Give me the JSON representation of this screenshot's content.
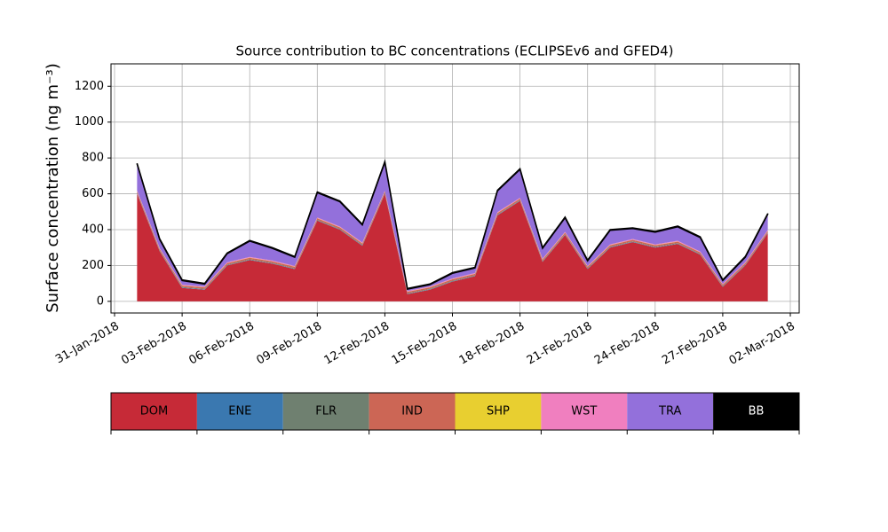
{
  "chart_data": {
    "type": "stacked_area",
    "title": "Source contribution to BC concentrations (ECLIPSEv6 and GFED4)",
    "ylabel": "Surface concentration (ng m⁻³)",
    "x": [
      "2018-02-01",
      "2018-02-02",
      "2018-02-03",
      "2018-02-04",
      "2018-02-05",
      "2018-02-06",
      "2018-02-07",
      "2018-02-08",
      "2018-02-09",
      "2018-02-10",
      "2018-02-11",
      "2018-02-12",
      "2018-02-13",
      "2018-02-14",
      "2018-02-15",
      "2018-02-16",
      "2018-02-17",
      "2018-02-18",
      "2018-02-19",
      "2018-02-20",
      "2018-02-21",
      "2018-02-22",
      "2018-02-23",
      "2018-02-24",
      "2018-02-25",
      "2018-02-26",
      "2018-02-27",
      "2018-02-28",
      "2018-03-01"
    ],
    "xlim": [
      "2018-01-31",
      "2018-03-02"
    ],
    "xticks": [
      {
        "value": "2018-01-31",
        "label": "31-Jan-2018"
      },
      {
        "value": "2018-02-03",
        "label": "03-Feb-2018"
      },
      {
        "value": "2018-02-06",
        "label": "06-Feb-2018"
      },
      {
        "value": "2018-02-09",
        "label": "09-Feb-2018"
      },
      {
        "value": "2018-02-12",
        "label": "12-Feb-2018"
      },
      {
        "value": "2018-02-15",
        "label": "15-Feb-2018"
      },
      {
        "value": "2018-02-18",
        "label": "18-Feb-2018"
      },
      {
        "value": "2018-02-21",
        "label": "21-Feb-2018"
      },
      {
        "value": "2018-02-24",
        "label": "24-Feb-2018"
      },
      {
        "value": "2018-02-27",
        "label": "27-Feb-2018"
      },
      {
        "value": "2018-03-02",
        "label": "02-Mar-2018"
      }
    ],
    "ylim": [
      -65,
      1325
    ],
    "yticks": [
      0,
      200,
      400,
      600,
      800,
      1000,
      1200
    ],
    "grid": true,
    "series": [
      {
        "name": "DOM",
        "color": "#c62a37",
        "values": [
          600,
          280,
          75,
          65,
          200,
          230,
          210,
          180,
          450,
          400,
          310,
          600,
          40,
          65,
          110,
          140,
          480,
          560,
          220,
          370,
          180,
          300,
          330,
          300,
          320,
          260,
          80,
          200,
          380
        ]
      },
      {
        "name": "ENE",
        "color": "#3a78b0",
        "values": [
          2,
          2,
          2,
          2,
          2,
          2,
          2,
          2,
          2,
          2,
          2,
          2,
          2,
          2,
          2,
          2,
          2,
          2,
          2,
          2,
          2,
          2,
          2,
          2,
          2,
          2,
          2,
          2,
          2
        ]
      },
      {
        "name": "FLR",
        "color": "#6f8070",
        "values": [
          3,
          3,
          3,
          3,
          3,
          3,
          3,
          3,
          3,
          3,
          3,
          3,
          3,
          3,
          3,
          3,
          3,
          3,
          3,
          3,
          3,
          3,
          3,
          3,
          3,
          3,
          3,
          3,
          3
        ]
      },
      {
        "name": "IND",
        "color": "#cc6655",
        "values": [
          8,
          8,
          8,
          8,
          8,
          8,
          8,
          8,
          8,
          8,
          8,
          8,
          8,
          8,
          8,
          8,
          8,
          8,
          8,
          8,
          8,
          8,
          8,
          8,
          8,
          8,
          8,
          8,
          8
        ]
      },
      {
        "name": "SHP",
        "color": "#e8cf30",
        "values": [
          1,
          1,
          1,
          1,
          1,
          1,
          1,
          1,
          1,
          1,
          1,
          1,
          1,
          1,
          1,
          1,
          1,
          1,
          1,
          1,
          1,
          1,
          1,
          1,
          1,
          1,
          1,
          1,
          1
        ]
      },
      {
        "name": "WST",
        "color": "#f07fbf",
        "values": [
          4,
          4,
          4,
          4,
          4,
          4,
          4,
          4,
          4,
          4,
          4,
          4,
          4,
          4,
          4,
          4,
          4,
          4,
          4,
          4,
          4,
          4,
          4,
          4,
          4,
          4,
          4,
          4,
          4
        ]
      },
      {
        "name": "TRA",
        "color": "#9370db",
        "values": [
          148,
          48,
          23,
          13,
          48,
          88,
          68,
          48,
          138,
          138,
          98,
          158,
          10,
          10,
          28,
          28,
          118,
          158,
          58,
          78,
          28,
          78,
          58,
          68,
          78,
          78,
          18,
          28,
          88
        ]
      },
      {
        "name": "BB",
        "color": "#000000",
        "values": [
          4,
          4,
          4,
          4,
          4,
          4,
          4,
          4,
          4,
          4,
          4,
          4,
          4,
          4,
          4,
          4,
          4,
          4,
          4,
          4,
          4,
          4,
          4,
          4,
          4,
          4,
          4,
          4,
          4
        ]
      }
    ]
  }
}
